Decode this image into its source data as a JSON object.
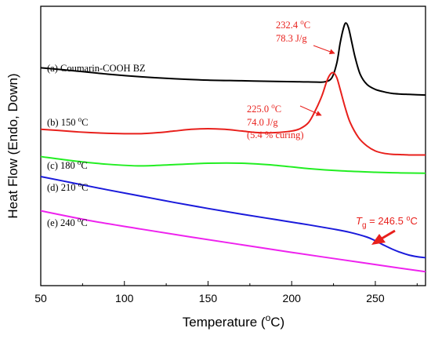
{
  "chart_data": {
    "type": "line",
    "xlabel_prefix": "Temperature (",
    "xlabel_unit": "C)",
    "xlabel_deg": "o",
    "ylabel": "Heat Flow (Endo, Down)",
    "xlim": [
      50,
      280
    ],
    "x_ticks": [
      "50",
      "100",
      "150",
      "200",
      "250"
    ],
    "x_tick_values": [
      50,
      100,
      150,
      200,
      250
    ],
    "y_ticks_shown": false,
    "series": [
      {
        "name": "(a) Coumarin-COOH BZ",
        "label_text": "(a) Coumarin-COOH BZ",
        "label_sup": "",
        "label_after": "",
        "color": "#000000",
        "x": [
          50,
          70,
          90,
          110,
          130,
          150,
          170,
          190,
          205,
          215,
          220,
          224,
          227,
          229,
          231,
          232.4,
          234,
          236,
          238,
          241,
          245,
          250,
          255,
          260,
          265,
          270,
          275,
          280
        ],
        "y": [
          8.15,
          8.06,
          7.96,
          7.88,
          7.82,
          7.78,
          7.76,
          7.74,
          7.73,
          7.72,
          7.73,
          7.85,
          8.3,
          8.9,
          9.35,
          9.5,
          9.35,
          8.9,
          8.45,
          7.95,
          7.65,
          7.5,
          7.43,
          7.38,
          7.36,
          7.35,
          7.34,
          7.33
        ]
      },
      {
        "name": "(b) 150 °C",
        "label_text": "(b) 150 ",
        "label_sup": "o",
        "label_after": "C",
        "color": "#e8201c",
        "x": [
          50,
          60,
          70,
          80,
          90,
          100,
          110,
          120,
          130,
          140,
          150,
          160,
          170,
          180,
          190,
          200,
          205,
          210,
          214,
          218,
          221,
          223,
          225,
          227,
          229,
          232,
          235,
          240,
          245,
          250,
          255,
          260,
          265,
          270,
          275,
          280
        ],
        "y": [
          6.3,
          6.27,
          6.23,
          6.2,
          6.18,
          6.17,
          6.17,
          6.2,
          6.25,
          6.3,
          6.32,
          6.3,
          6.25,
          6.2,
          6.2,
          6.25,
          6.32,
          6.5,
          6.85,
          7.3,
          7.75,
          7.95,
          8.0,
          7.85,
          7.5,
          6.95,
          6.5,
          6.05,
          5.8,
          5.65,
          5.58,
          5.55,
          5.54,
          5.53,
          5.53,
          5.53
        ]
      },
      {
        "name": "(c) 180 °C",
        "label_text": "(c) 180 ",
        "label_sup": "o",
        "label_after": "C",
        "color": "#22ee22",
        "x": [
          50,
          70,
          90,
          110,
          130,
          150,
          170,
          190,
          210,
          230,
          250,
          265,
          280
        ],
        "y": [
          5.48,
          5.35,
          5.25,
          5.2,
          5.24,
          5.28,
          5.28,
          5.22,
          5.12,
          5.05,
          5.01,
          4.99,
          4.98
        ]
      },
      {
        "name": "(d) 210 °C",
        "label_text": "(d) 210 ",
        "label_sup": "o",
        "label_after": "C",
        "color": "#1a1adb",
        "x": [
          50,
          70,
          90,
          110,
          130,
          150,
          170,
          190,
          210,
          225,
          235,
          245,
          250,
          255,
          260,
          265,
          270,
          275,
          280
        ],
        "y": [
          4.88,
          4.68,
          4.48,
          4.29,
          4.1,
          3.92,
          3.75,
          3.59,
          3.43,
          3.3,
          3.2,
          3.06,
          2.95,
          2.82,
          2.7,
          2.6,
          2.52,
          2.47,
          2.44
        ]
      },
      {
        "name": "(e) 240 °C",
        "label_text": "(e) 240 ",
        "label_sup": "o",
        "label_after": "C",
        "color": "#ee22ee",
        "x": [
          50,
          80,
          110,
          140,
          170,
          200,
          230,
          260,
          280
        ],
        "y": [
          3.85,
          3.55,
          3.3,
          3.06,
          2.83,
          2.6,
          2.38,
          2.16,
          2.02
        ]
      }
    ],
    "annotations": [
      {
        "name": "peak-a",
        "line1": "232.4 ",
        "line1_sup": "o",
        "line1_after": "C",
        "line2": "78.3 J/g"
      },
      {
        "name": "peak-b",
        "line1": "225.0 ",
        "line1_sup": "o",
        "line1_after": "C",
        "line2": "74.0 J/g",
        "line3": "(5.4 % curing)"
      },
      {
        "name": "tg",
        "prefix": "T",
        "sub": "g",
        "value": " = 246.5 ",
        "sup": "o",
        "after": "C"
      }
    ],
    "colors": {
      "annotation": "#e8201c"
    }
  }
}
